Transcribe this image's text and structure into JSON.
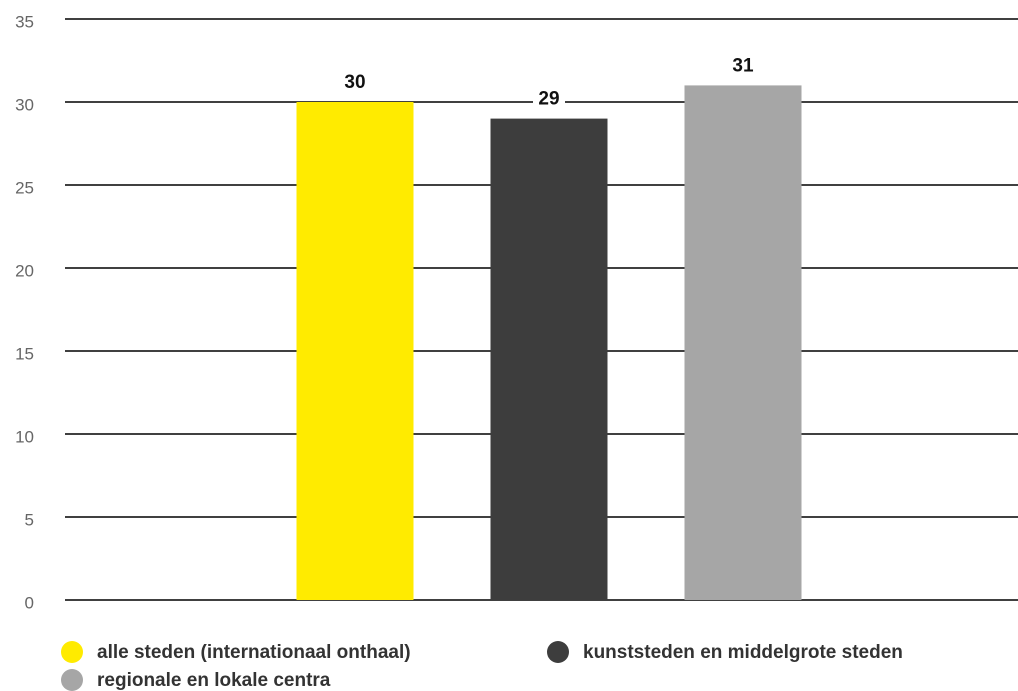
{
  "chart_data": {
    "type": "bar",
    "categories": [
      null
    ],
    "series": [
      {
        "name": "alle steden (internationaal onthaal)",
        "color": "#ffeb00",
        "values": [
          30
        ]
      },
      {
        "name": "kunststeden en middelgrote steden",
        "color": "#3d3d3d",
        "values": [
          29
        ]
      },
      {
        "name": "regionale en lokale centra",
        "color": "#a6a6a6",
        "values": [
          31
        ]
      }
    ],
    "ylim": [
      0,
      35
    ],
    "yticks": [
      0,
      5,
      10,
      15,
      20,
      25,
      30,
      35
    ],
    "grid": true,
    "legend": "bottom"
  }
}
